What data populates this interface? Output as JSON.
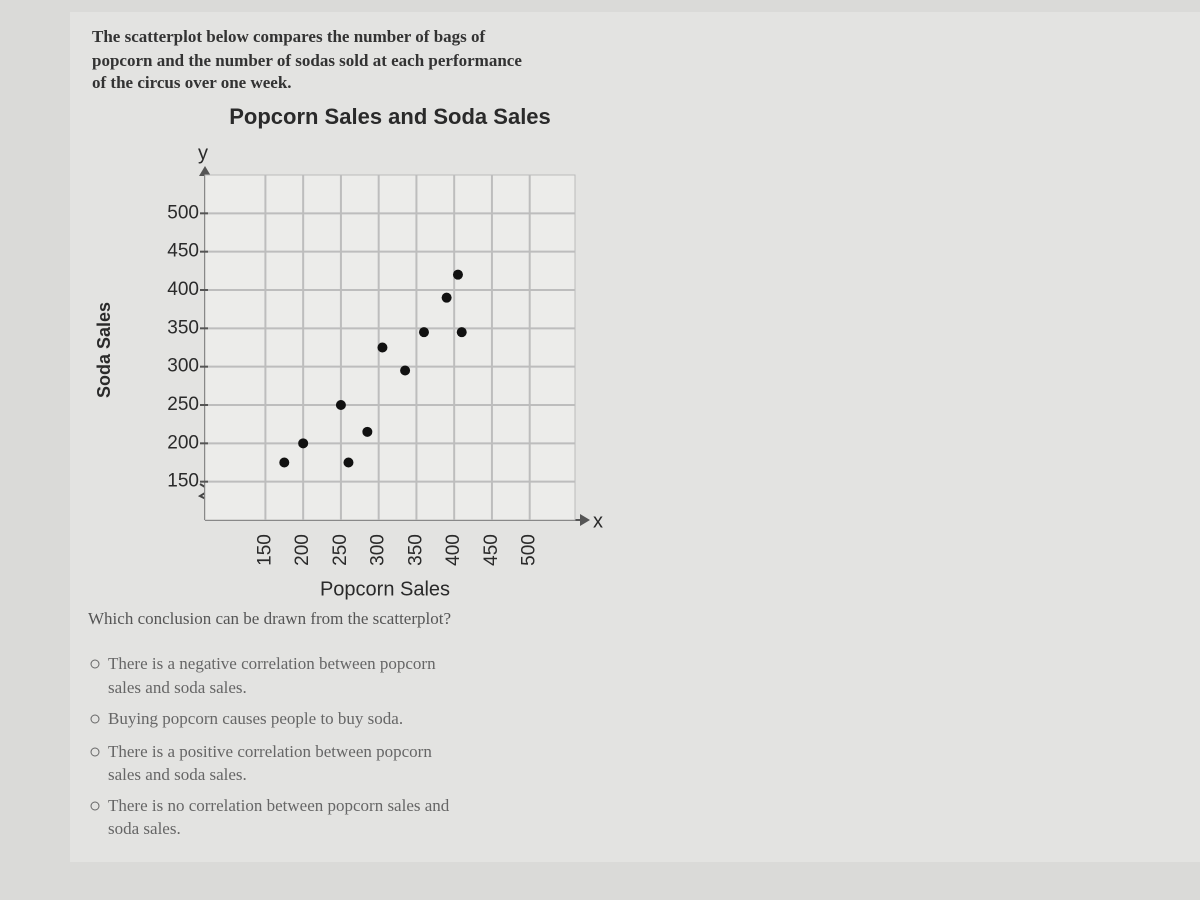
{
  "intro": [
    "The scatterplot below compares the number of bags of",
    "popcorn and the number of sodas sold at each performance",
    "of the circus over one week."
  ],
  "chart_data": {
    "type": "scatter",
    "title": "Popcorn Sales and Soda Sales",
    "x_label": "Popcorn Sales",
    "y_label": "Soda Sales",
    "x_axis_letter": "x",
    "y_axis_letter": "y",
    "x": [
      175,
      200,
      250,
      260,
      285,
      305,
      335,
      360,
      390,
      405,
      410
    ],
    "values": [
      175,
      200,
      250,
      175,
      215,
      325,
      295,
      345,
      390,
      420,
      345
    ],
    "color": "#111111",
    "xlim": [
      70,
      560
    ],
    "ylim": [
      100,
      550
    ],
    "xticks": [
      150,
      200,
      250,
      300,
      350,
      400,
      450,
      500
    ],
    "yticks": [
      150,
      200,
      250,
      300,
      350,
      400,
      450,
      500
    ],
    "grid": true
  },
  "question": "Which conclusion can be drawn from the scatterplot?",
  "options": [
    [
      "There is a negative correlation between popcorn",
      "sales and soda sales."
    ],
    [
      "Buying popcorn causes people to buy soda."
    ],
    [
      "There is a positive correlation between popcorn",
      "sales and soda sales."
    ],
    [
      "There is no correlation between popcorn sales and",
      "soda sales."
    ]
  ]
}
